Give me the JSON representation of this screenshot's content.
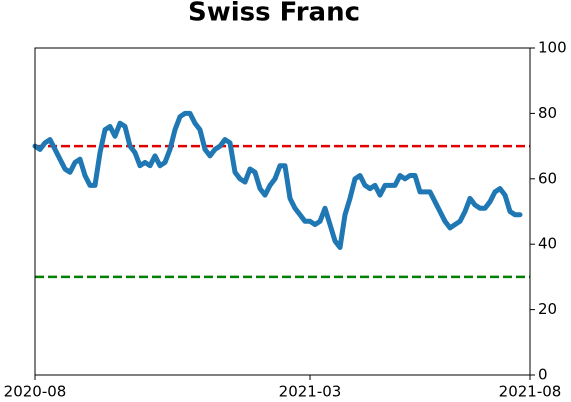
{
  "chart_data": {
    "type": "line",
    "title": "Swiss Franc",
    "categories": [
      "2020-08",
      null,
      null,
      null,
      null,
      null,
      null,
      null,
      null,
      null,
      null,
      null,
      null,
      null,
      null,
      null,
      null,
      null,
      null,
      null,
      null,
      null,
      null,
      null,
      null,
      null,
      null,
      null,
      null,
      null,
      null,
      null,
      null,
      null,
      null,
      null,
      null,
      null,
      null,
      null,
      null,
      null,
      null,
      null,
      null,
      null,
      null,
      null,
      null,
      null,
      null,
      null,
      null,
      null,
      null,
      "2021-03",
      null,
      null,
      null,
      null,
      null,
      null,
      null,
      null,
      null,
      null,
      null,
      null,
      null,
      null,
      null,
      null,
      null,
      null,
      null,
      null,
      null,
      null,
      null,
      null,
      null,
      null,
      null,
      null,
      null,
      null,
      null,
      null,
      null,
      null,
      null,
      null,
      null,
      null,
      null,
      null,
      null,
      null,
      null,
      "2021-08"
    ],
    "series": [
      {
        "color": "#1f77b4",
        "values": [
          70,
          69,
          71,
          72,
          69,
          66,
          63,
          62,
          65,
          66,
          61,
          58,
          58,
          68,
          75,
          76,
          73,
          77,
          76,
          70,
          68,
          64,
          65,
          64,
          67,
          64,
          65,
          69,
          75,
          79,
          80,
          80,
          77,
          75,
          69,
          67,
          69,
          70,
          72,
          71,
          62,
          60,
          59,
          63,
          62,
          57,
          55,
          58,
          60,
          64,
          64,
          54,
          51,
          49,
          47,
          47,
          46,
          47,
          51,
          46,
          41,
          39,
          49,
          54,
          60,
          61,
          58,
          57,
          58,
          55,
          58,
          58,
          58,
          61,
          60,
          61,
          61,
          56,
          56,
          56,
          53,
          50,
          47,
          45,
          46,
          47,
          50,
          54,
          52,
          51,
          51,
          53,
          56,
          57,
          55,
          50,
          49,
          49,
          null,
          null
        ]
      }
    ],
    "ylim": [
      0,
      100
    ],
    "yticks": [
      0,
      20,
      40,
      60,
      80,
      100
    ],
    "hlines": [
      {
        "value": 70,
        "color": "#e00000"
      },
      {
        "value": 30,
        "color": "#008000"
      }
    ]
  }
}
